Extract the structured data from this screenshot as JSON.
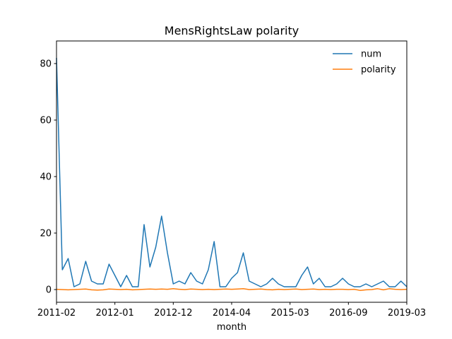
{
  "chart_data": {
    "type": "line",
    "title": "MensRightsLaw polarity",
    "xlabel": "month",
    "ylabel": "",
    "x_tick_labels": [
      "2011-02",
      "2012-01",
      "2012-12",
      "2014-04",
      "2015-03",
      "2016-09",
      "2019-03"
    ],
    "y_tick_labels": [
      "0",
      "20",
      "40",
      "60",
      "80"
    ],
    "y_ticks": [
      0,
      20,
      40,
      60,
      80
    ],
    "ylim": [
      -4.5,
      88
    ],
    "legend_position": "upper-right",
    "grid": false,
    "series": [
      {
        "name": "num",
        "color": "#1f77b4",
        "values": [
          82,
          7,
          11,
          1,
          2,
          10,
          3,
          2,
          2,
          9,
          5,
          1,
          5,
          1,
          1,
          23,
          8,
          15,
          26,
          13,
          2,
          3,
          2,
          6,
          3,
          2,
          7,
          17,
          1,
          1,
          4,
          6,
          13,
          3,
          2,
          1,
          2,
          4,
          2,
          1,
          1,
          1,
          5,
          8,
          2,
          4,
          1,
          1,
          2,
          4,
          2,
          1,
          1,
          2,
          1,
          2,
          3,
          1,
          1,
          3,
          1
        ]
      },
      {
        "name": "polarity",
        "color": "#ff7f0e",
        "values": [
          0.1,
          0.0,
          -0.1,
          0.0,
          0.1,
          0.2,
          -0.1,
          -0.2,
          -0.1,
          0.2,
          0.1,
          0.0,
          0.1,
          -0.1,
          0.0,
          0.1,
          0.2,
          0.1,
          0.2,
          0.1,
          0.3,
          0.1,
          0.0,
          0.2,
          0.1,
          0.0,
          0.1,
          0.0,
          0.1,
          0.2,
          0.1,
          0.2,
          0.3,
          0.0,
          0.1,
          0.2,
          0.0,
          -0.1,
          0.1,
          0.0,
          0.1,
          0.2,
          0.0,
          0.1,
          0.2,
          0.0,
          0.1,
          0.0,
          0.1,
          0.1,
          0.0,
          0.1,
          -0.3,
          -0.1,
          0.0,
          0.3,
          -0.1,
          0.3,
          0.1,
          0.0,
          0.1
        ]
      }
    ]
  }
}
